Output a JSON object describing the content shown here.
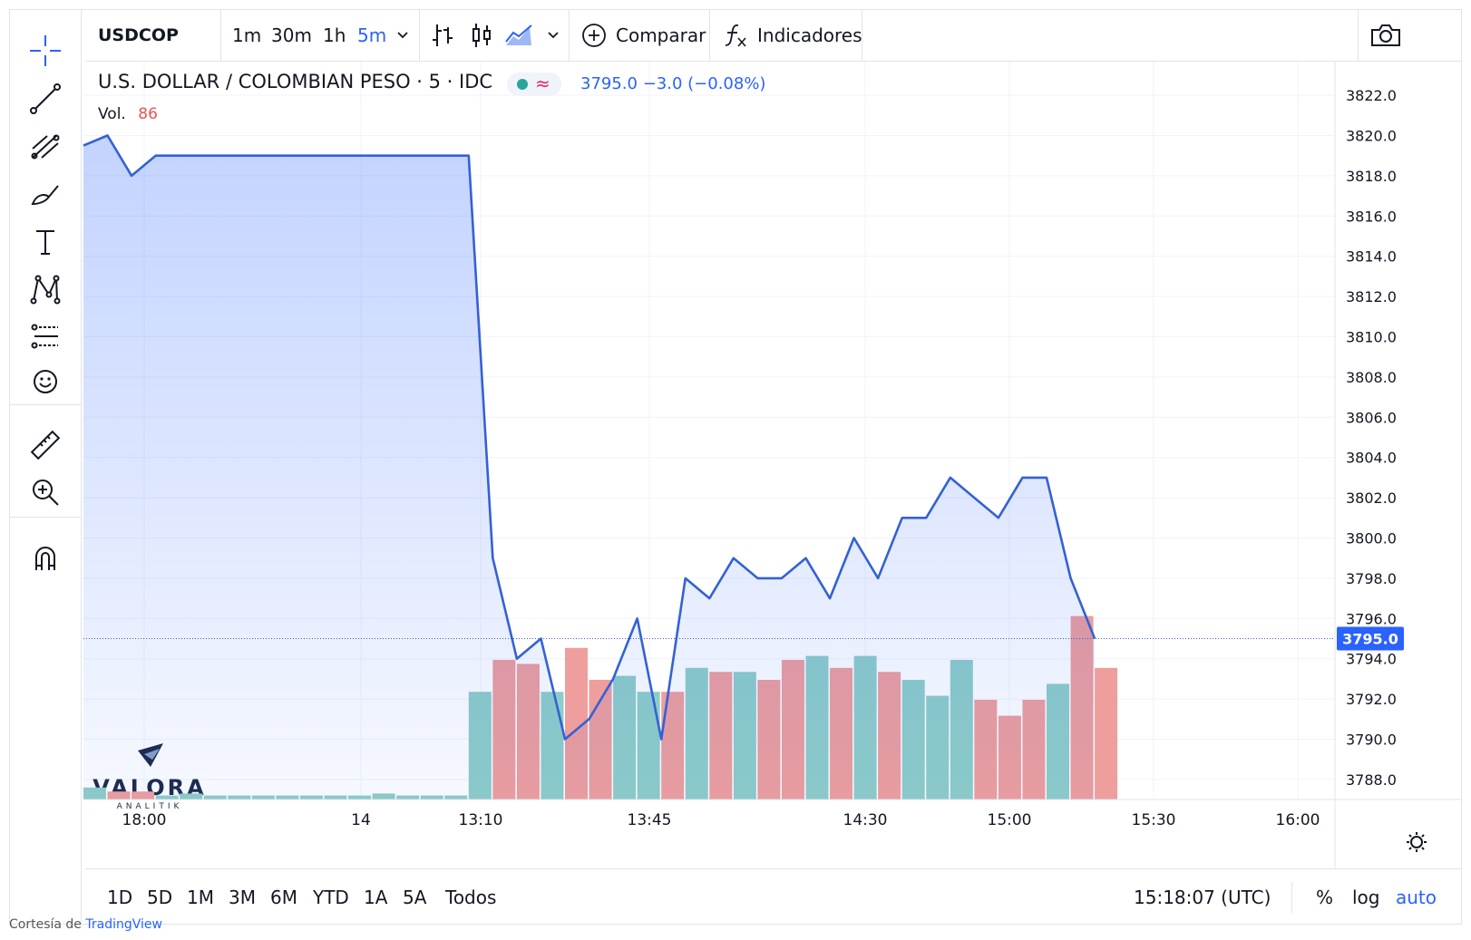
{
  "header": {
    "symbol": "USDCOP",
    "intervals": [
      "1m",
      "30m",
      "1h",
      "5m"
    ],
    "active_interval": "5m",
    "compare_label": "Comparar",
    "indicators_label": "Indicadores"
  },
  "legend": {
    "title": "U.S. DOLLAR / COLOMBIAN PESO · 5 · IDC",
    "price_line": "3795.0  −3.0 (−0.08%)",
    "vol_label": "Vol.",
    "vol_value": "86",
    "pill_symbol": "≈"
  },
  "ranges": [
    "1D",
    "5D",
    "1M",
    "3M",
    "6M",
    "YTD",
    "1A",
    "5A",
    "Todos"
  ],
  "clock": "15:18:07 (UTC)",
  "scale_buttons": [
    "%",
    "log",
    "auto"
  ],
  "credit": {
    "prefix": "Cortesía de ",
    "link": "TradingView"
  },
  "watermark": {
    "name": "VALORA",
    "tagline": "ANALITIK"
  },
  "chart_data": {
    "type": "area",
    "price_y_ticks": [
      "3822.0",
      "3820.0",
      "3818.0",
      "3816.0",
      "3814.0",
      "3812.0",
      "3810.0",
      "3808.0",
      "3806.0",
      "3804.0",
      "3802.0",
      "3800.0",
      "3798.0",
      "3796.0",
      "3794.0",
      "3792.0",
      "3790.0",
      "3788.0"
    ],
    "ylim": [
      3786.0,
      3823.0
    ],
    "x_ticks": [
      "18:00",
      "14",
      "13:10",
      "13:45",
      "14:30",
      "15:00",
      "15:30",
      "16:00"
    ],
    "last_price_label": "3795.0",
    "last_price": 3795.0,
    "colors": {
      "line": "#3461d4",
      "up_volume": "#8ecdc7",
      "down_volume": "#ee9e9c"
    },
    "series": [
      {
        "values": [
          3819.5,
          3820.0,
          3818.0,
          3819.0,
          3819.0,
          3819.0,
          3819.0,
          3819.0,
          3819.0,
          3819.0,
          3819.0,
          3819.0,
          3819.0,
          3819.0,
          3819.0,
          3819.0,
          3819.0,
          3799.0,
          3794.0,
          3795.0,
          3790.0,
          3791.0,
          3793.0,
          3796.0,
          3790.0,
          3798.0,
          3797.0,
          3799.0,
          3798.0,
          3798.0,
          3799.0,
          3797.0,
          3800.0,
          3798.0,
          3801.0,
          3801.0,
          3803.0,
          3802.0,
          3801.0,
          3803.0,
          3803.0,
          3798.0,
          3795.0
        ]
      }
    ],
    "volume": [
      {
        "v": 3,
        "d": "up"
      },
      {
        "v": 2,
        "d": "down"
      },
      {
        "v": 2,
        "d": "down"
      },
      {
        "v": 1,
        "d": "up"
      },
      {
        "v": 1.5,
        "d": "up"
      },
      {
        "v": 1,
        "d": "up"
      },
      {
        "v": 1,
        "d": "up"
      },
      {
        "v": 1,
        "d": "up"
      },
      {
        "v": 1,
        "d": "up"
      },
      {
        "v": 1,
        "d": "up"
      },
      {
        "v": 1,
        "d": "up"
      },
      {
        "v": 1,
        "d": "up"
      },
      {
        "v": 1.5,
        "d": "up"
      },
      {
        "v": 1,
        "d": "up"
      },
      {
        "v": 1,
        "d": "up"
      },
      {
        "v": 1,
        "d": "up"
      },
      {
        "v": 27,
        "d": "up"
      },
      {
        "v": 35,
        "d": "down"
      },
      {
        "v": 34,
        "d": "down"
      },
      {
        "v": 27,
        "d": "up"
      },
      {
        "v": 38,
        "d": "down"
      },
      {
        "v": 30,
        "d": "down"
      },
      {
        "v": 31,
        "d": "up"
      },
      {
        "v": 27,
        "d": "up"
      },
      {
        "v": 27,
        "d": "down"
      },
      {
        "v": 33,
        "d": "up"
      },
      {
        "v": 32,
        "d": "down"
      },
      {
        "v": 32,
        "d": "up"
      },
      {
        "v": 30,
        "d": "down"
      },
      {
        "v": 35,
        "d": "down"
      },
      {
        "v": 36,
        "d": "up"
      },
      {
        "v": 33,
        "d": "down"
      },
      {
        "v": 36,
        "d": "up"
      },
      {
        "v": 32,
        "d": "down"
      },
      {
        "v": 30,
        "d": "up"
      },
      {
        "v": 26,
        "d": "up"
      },
      {
        "v": 35,
        "d": "up"
      },
      {
        "v": 25,
        "d": "down"
      },
      {
        "v": 21,
        "d": "down"
      },
      {
        "v": 25,
        "d": "down"
      },
      {
        "v": 29,
        "d": "up"
      },
      {
        "v": 46,
        "d": "down"
      },
      {
        "v": 33,
        "d": "down"
      }
    ]
  }
}
